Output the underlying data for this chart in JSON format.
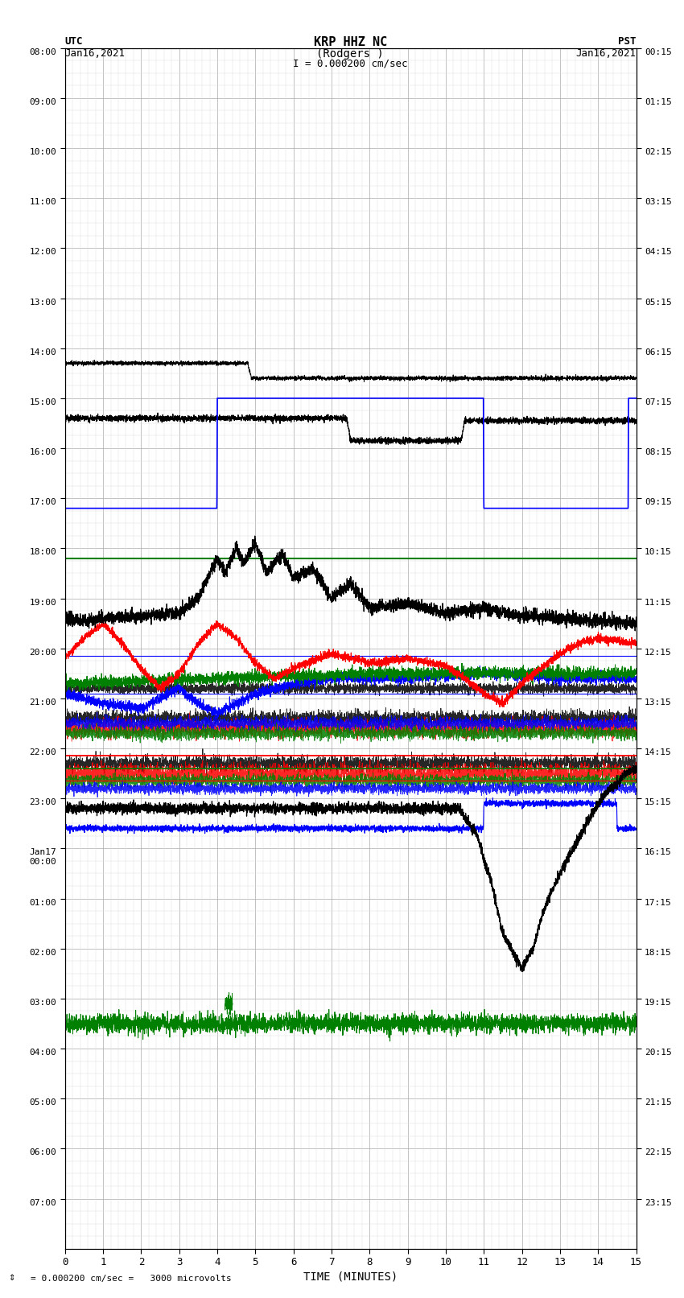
{
  "title_line1": "KRP HHZ NC",
  "title_line2": "(Rodgers )",
  "scale_text": "I = 0.000200 cm/sec",
  "utc_label": "UTC",
  "utc_date": "Jan16,2021",
  "pst_label": "PST",
  "pst_date": "Jan16,2021",
  "xlabel": "TIME (MINUTES)",
  "footer_text": "= 0.000200 cm/sec =   3000 microvolts",
  "xlim": [
    0,
    15
  ],
  "bg_color": "#ffffff",
  "grid_color_major": "#aaaaaa",
  "grid_color_minor": "#dddddd",
  "utc_times": [
    "08:00",
    "09:00",
    "10:00",
    "11:00",
    "12:00",
    "13:00",
    "14:00",
    "15:00",
    "16:00",
    "17:00",
    "18:00",
    "19:00",
    "20:00",
    "21:00",
    "22:00",
    "23:00",
    "Jan17\n00:00",
    "01:00",
    "02:00",
    "03:00",
    "04:00",
    "05:00",
    "06:00",
    "07:00"
  ],
  "pst_times": [
    "00:15",
    "01:15",
    "02:15",
    "03:15",
    "04:15",
    "05:15",
    "06:15",
    "07:15",
    "08:15",
    "09:15",
    "10:15",
    "11:15",
    "12:15",
    "13:15",
    "14:15",
    "15:15",
    "16:15",
    "17:15",
    "18:15",
    "19:15",
    "20:15",
    "21:15",
    "22:15",
    "23:15"
  ],
  "n_rows": 24,
  "n_cols": 15
}
